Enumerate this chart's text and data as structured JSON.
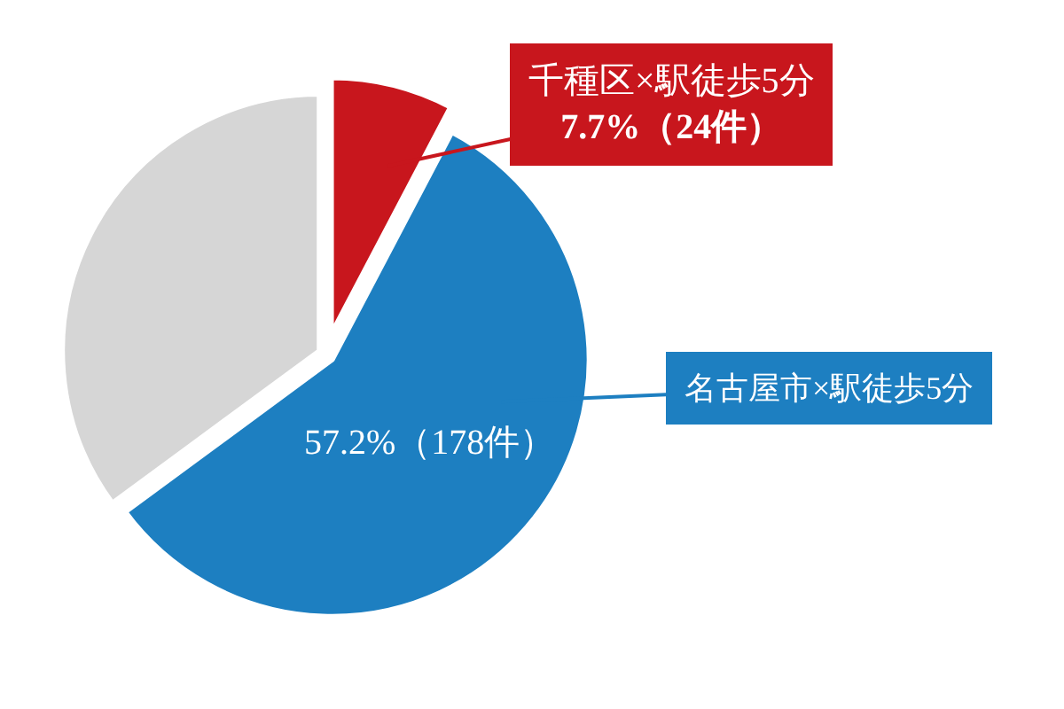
{
  "chart_data": {
    "type": "pie",
    "categories": [
      "千種区×駅徒歩5分",
      "名古屋市×駅徒歩5分",
      null
    ],
    "values": [
      7.7,
      57.2,
      35.1
    ],
    "colors": [
      "#c8161d",
      "#1d7fc1",
      "#d6d6d6"
    ],
    "value_labels": [
      "7.7%（24件）",
      "57.2%（178件）",
      null
    ],
    "legend": false
  }
}
